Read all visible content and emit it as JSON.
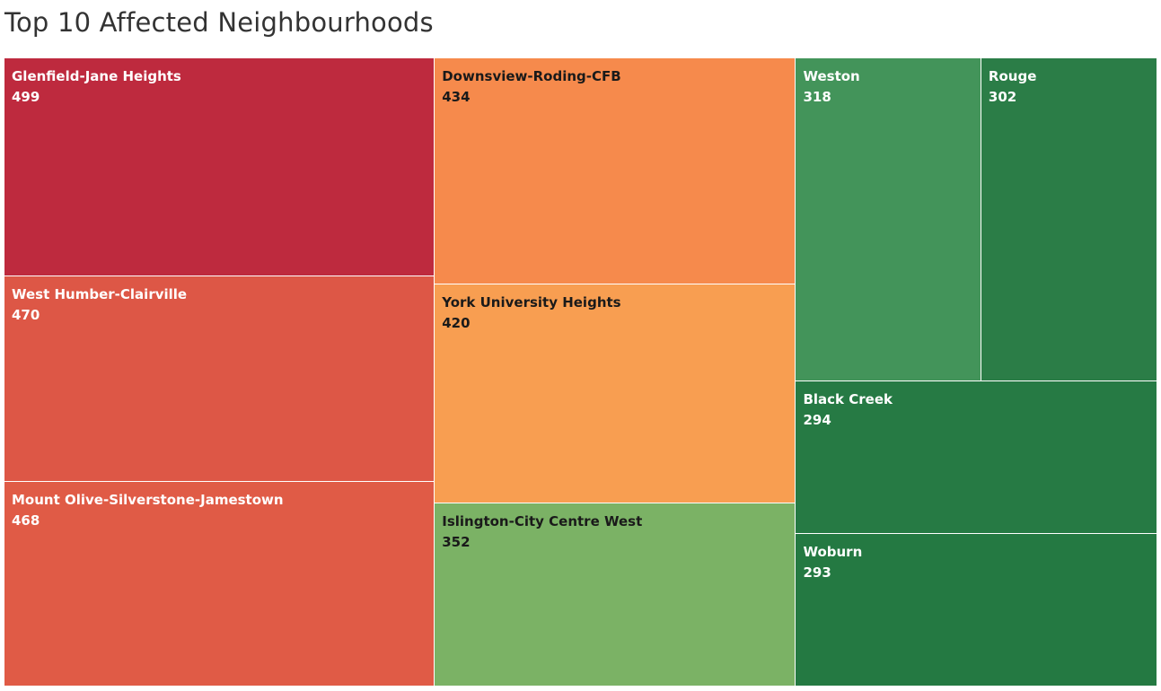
{
  "chart_data": {
    "type": "treemap",
    "title": "Top 10 Affected Neighbourhoods",
    "items": [
      {
        "name": "Glenfield-Jane Heights",
        "value": 499,
        "color": "#be2a3e"
      },
      {
        "name": "West Humber-Clairville",
        "value": 470,
        "color": "#dd5746"
      },
      {
        "name": "Mount Olive-Silverstone-Jamestown",
        "value": 468,
        "color": "#e05b46"
      },
      {
        "name": "Downsview-Roding-CFB",
        "value": 434,
        "color": "#f68a4c"
      },
      {
        "name": "York University Heights",
        "value": 420,
        "color": "#f89e51"
      },
      {
        "name": "Islington-City Centre West",
        "value": 352,
        "color": "#7bb265"
      },
      {
        "name": "Weston",
        "value": 318,
        "color": "#43945a"
      },
      {
        "name": "Rouge",
        "value": 302,
        "color": "#2b7d47"
      },
      {
        "name": "Black Creek",
        "value": 294,
        "color": "#267a44"
      },
      {
        "name": "Woburn",
        "value": 293,
        "color": "#247942"
      }
    ]
  },
  "text_colors": {
    "dark": "#1a1a1a",
    "light": "#ffffff"
  }
}
